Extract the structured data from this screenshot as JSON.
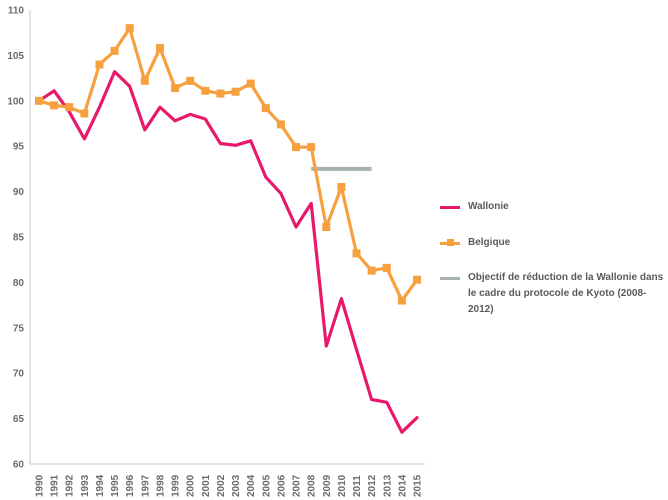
{
  "chart_data": {
    "type": "line",
    "x": [
      "1990",
      "1991",
      "1992",
      "1993",
      "1994",
      "1995",
      "1996",
      "1997",
      "1998",
      "1999",
      "2000",
      "2001",
      "2002",
      "2003",
      "2004",
      "2005",
      "2006",
      "2007",
      "2008",
      "2009",
      "2010",
      "2011",
      "2012",
      "2013",
      "2014",
      "2015"
    ],
    "ylim": [
      60,
      110
    ],
    "yticks": [
      60,
      65,
      70,
      75,
      80,
      85,
      90,
      95,
      100,
      105,
      110
    ],
    "grid": false,
    "legend_position": "right",
    "series": [
      {
        "name": "Wallonie",
        "color": "#e8196b",
        "marker": "none",
        "values": [
          100,
          101.1,
          98.8,
          95.8,
          99.3,
          103.2,
          101.6,
          96.8,
          99.3,
          97.8,
          98.5,
          98.0,
          95.3,
          95.1,
          95.6,
          91.6,
          89.8,
          86.1,
          88.7,
          73.0,
          78.2,
          72.6,
          67.1,
          66.8,
          63.5,
          65.1
        ]
      },
      {
        "name": "Belgique",
        "color": "#f7a03f",
        "marker": "square",
        "values": [
          100,
          99.5,
          99.3,
          98.6,
          104.0,
          105.5,
          108.0,
          102.2,
          105.8,
          101.4,
          102.2,
          101.1,
          100.8,
          101.0,
          101.9,
          99.2,
          97.4,
          94.9,
          94.9,
          86.1,
          90.5,
          83.2,
          81.3,
          81.6,
          78.0,
          80.3
        ]
      },
      {
        "name": "Objectif de réduction de la Wallonie dans le cadre du protocole de Kyoto (2008-2012)",
        "color": "#a7b3b3",
        "marker": "none",
        "x": [
          "2008",
          "2012"
        ],
        "values": [
          92.5,
          92.5
        ]
      }
    ]
  }
}
